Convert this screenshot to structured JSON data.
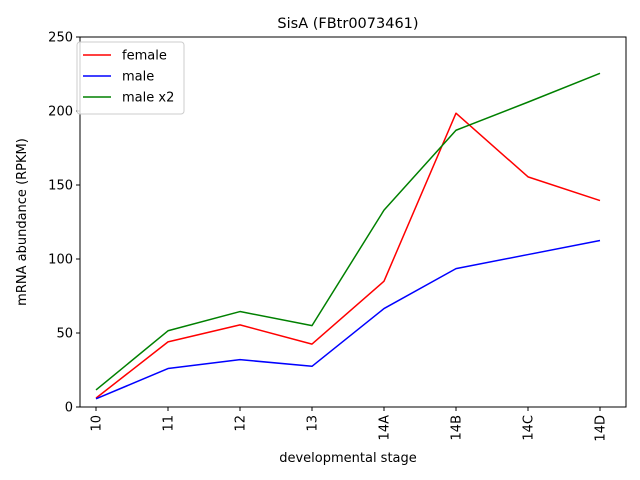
{
  "chart_data": {
    "type": "line",
    "title": "SisA (FBtr0073461)",
    "xlabel": "developmental stage",
    "ylabel": "mRNA abundance (RPKM)",
    "categories": [
      "10",
      "11",
      "12",
      "13",
      "14A",
      "14B",
      "14C",
      "14D"
    ],
    "ylim": [
      0,
      250
    ],
    "yticks": [
      0,
      50,
      100,
      150,
      200,
      250
    ],
    "grid": false,
    "legend_position": "top-left",
    "series": [
      {
        "name": "female",
        "color": "#ff0000",
        "values": [
          6,
          44,
          55.5,
          42.5,
          85,
          198.5,
          155.5,
          139.5
        ]
      },
      {
        "name": "male",
        "color": "#0000ff",
        "values": [
          5.5,
          26,
          32,
          27.5,
          66.5,
          93.5,
          103,
          112.5
        ]
      },
      {
        "name": "male x2",
        "color": "#008000",
        "values": [
          11.5,
          51.5,
          64.5,
          55,
          133,
          187,
          206,
          225.5
        ]
      }
    ]
  }
}
